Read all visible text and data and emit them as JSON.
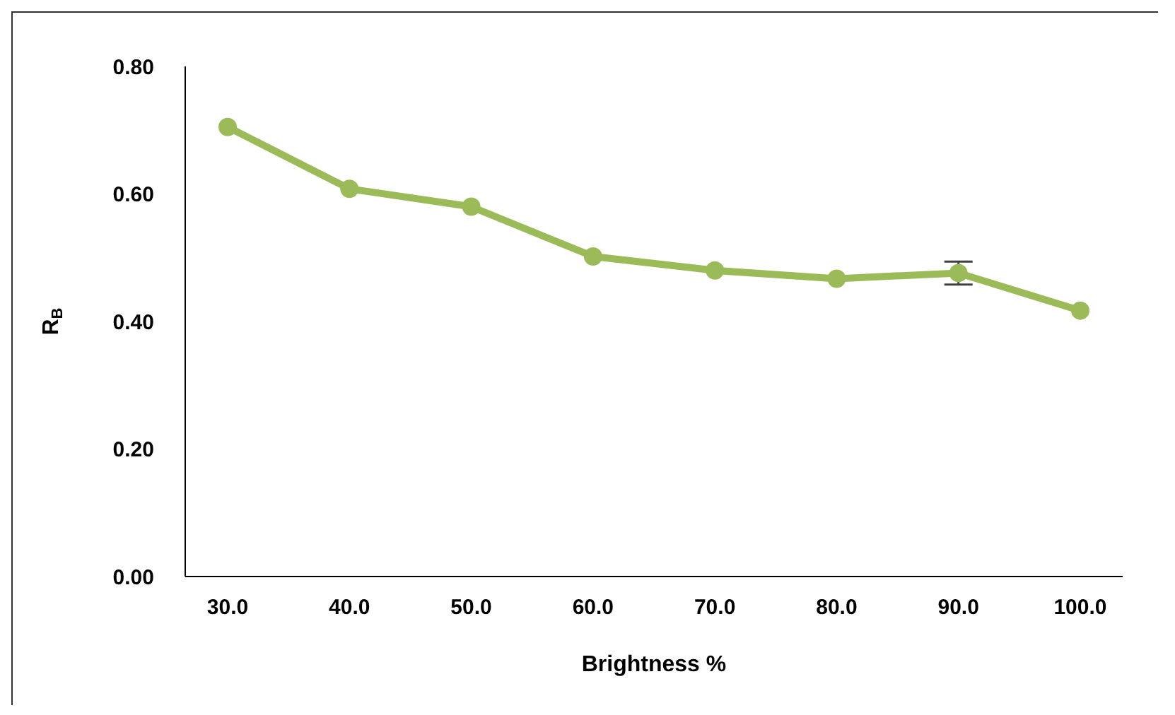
{
  "chart_data": {
    "type": "line",
    "xlabel": "Brightness %",
    "ylabel": "R$_{B}$",
    "categories": [
      "30.0",
      "40.0",
      "50.0",
      "60.0",
      "70.0",
      "80.0",
      "90.0",
      "100.0"
    ],
    "series": [
      {
        "color": "#9bbb59",
        "values": [
          0.705,
          0.608,
          0.58,
          0.502,
          0.48,
          0.467,
          0.476,
          0.417
        ],
        "errors": [
          null,
          null,
          null,
          null,
          null,
          null,
          0.018,
          null
        ]
      }
    ],
    "ylim": [
      0,
      0.8
    ],
    "yticks": [
      {
        "value": 0,
        "label": "0.00"
      },
      {
        "value": 0.2,
        "label": "0.20"
      },
      {
        "value": 0.4,
        "label": "0.40"
      },
      {
        "value": 0.6,
        "label": "0.60"
      },
      {
        "value": 0.8,
        "label": "0.80"
      }
    ],
    "grid": false,
    "legend": false,
    "marker": "circle",
    "line_style": "solid"
  }
}
